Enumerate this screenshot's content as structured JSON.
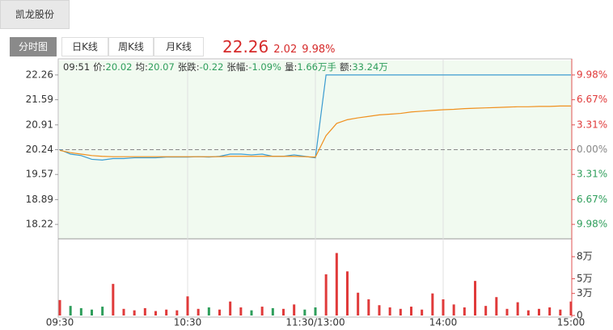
{
  "stock_tab": "凯龙股份",
  "views": [
    "分时图",
    "日K线",
    "周K线",
    "月K线"
  ],
  "quote": {
    "price": "22.26",
    "change": "2.02",
    "pct": "9.98%"
  },
  "info": {
    "time": "09:51",
    "items": [
      {
        "label": "价:",
        "value": "20.02"
      },
      {
        "label": "均:",
        "value": "20.07"
      },
      {
        "label": "张跌:",
        "value": "-0.22"
      },
      {
        "label": "张幅:",
        "value": "-1.09%"
      },
      {
        "label": "量:",
        "value": "1.66万手"
      },
      {
        "label": "额:",
        "value": "33.24万"
      }
    ]
  },
  "chart_data": {
    "type": "line",
    "categories": [
      "09:30",
      null,
      null,
      null,
      null,
      null,
      null,
      null,
      null,
      null,
      null,
      null,
      "10:30",
      null,
      null,
      null,
      null,
      null,
      null,
      null,
      null,
      null,
      null,
      null,
      "11:30/13:00",
      null,
      null,
      null,
      null,
      null,
      null,
      null,
      null,
      null,
      null,
      null,
      "14:00",
      null,
      null,
      null,
      null,
      null,
      null,
      null,
      null,
      null,
      null,
      null,
      "15:00"
    ],
    "series": [
      {
        "name": "价",
        "color": "#3a9bd0",
        "values": [
          20.24,
          20.12,
          20.08,
          19.98,
          19.96,
          20.0,
          20.0,
          20.02,
          20.02,
          20.02,
          20.04,
          20.04,
          20.04,
          20.05,
          20.04,
          20.06,
          20.12,
          20.12,
          20.1,
          20.12,
          20.06,
          20.06,
          20.1,
          20.06,
          20.02,
          22.26,
          22.26,
          22.26,
          22.26,
          22.26,
          22.26,
          22.26,
          22.26,
          22.26,
          22.26,
          22.26,
          22.26,
          22.26,
          22.26,
          22.26,
          22.26,
          22.26,
          22.26,
          22.26,
          22.26,
          22.26,
          22.26,
          22.26,
          22.26
        ]
      },
      {
        "name": "均",
        "color": "#f0901e",
        "values": [
          20.22,
          20.16,
          20.12,
          20.08,
          20.06,
          20.05,
          20.05,
          20.05,
          20.05,
          20.05,
          20.05,
          20.05,
          20.05,
          20.05,
          20.05,
          20.05,
          20.06,
          20.06,
          20.06,
          20.06,
          20.06,
          20.06,
          20.06,
          20.05,
          20.04,
          20.62,
          20.95,
          21.05,
          21.1,
          21.14,
          21.18,
          21.2,
          21.22,
          21.26,
          21.28,
          21.3,
          21.32,
          21.33,
          21.35,
          21.36,
          21.37,
          21.38,
          21.39,
          21.4,
          21.4,
          21.41,
          21.41,
          21.42,
          21.42
        ]
      },
      {
        "name": "量",
        "type": "bar",
        "panel": "volume",
        "values": [
          2.1,
          1.3,
          1.0,
          0.8,
          1.2,
          4.3,
          0.9,
          0.7,
          1.0,
          0.6,
          0.8,
          0.7,
          2.6,
          0.9,
          1.1,
          0.8,
          1.9,
          1.1,
          0.7,
          1.2,
          1.0,
          0.9,
          1.5,
          0.8,
          1.1,
          5.6,
          8.5,
          6.0,
          3.1,
          2.2,
          1.4,
          1.1,
          0.9,
          1.2,
          0.8,
          3.0,
          2.2,
          1.5,
          1.1,
          4.7,
          1.3,
          2.5,
          0.9,
          1.8,
          0.7,
          0.9,
          1.1,
          0.8,
          1.9
        ]
      }
    ],
    "ylim": [
      17.83,
      22.65
    ],
    "yticks": [
      22.26,
      21.59,
      20.91,
      20.24,
      19.57,
      18.89,
      18.22
    ],
    "prev_close": 20.24,
    "y2lim": [
      -11.91,
      11.91
    ],
    "y2ticks": [
      {
        "value": 9.98,
        "label": "9.98%"
      },
      {
        "value": 6.67,
        "label": "6.67%"
      },
      {
        "value": 3.31,
        "label": "3.31%"
      },
      {
        "value": 0,
        "label": "0.00%"
      },
      {
        "value": -3.31,
        "label": "3.31%"
      },
      {
        "value": -6.67,
        "label": "6.67%"
      },
      {
        "value": -9.98,
        "label": "9.98%"
      }
    ],
    "volume_ylim": [
      0,
      10.1
    ],
    "volume_yticks": [
      {
        "value": 8,
        "label": "8万"
      },
      {
        "value": 5,
        "label": "5万"
      },
      {
        "value": 3,
        "label": "3万"
      },
      0
    ],
    "up_color": "#e03a3a",
    "down_color": "#2e9e5b",
    "zero_color": "#888888"
  }
}
